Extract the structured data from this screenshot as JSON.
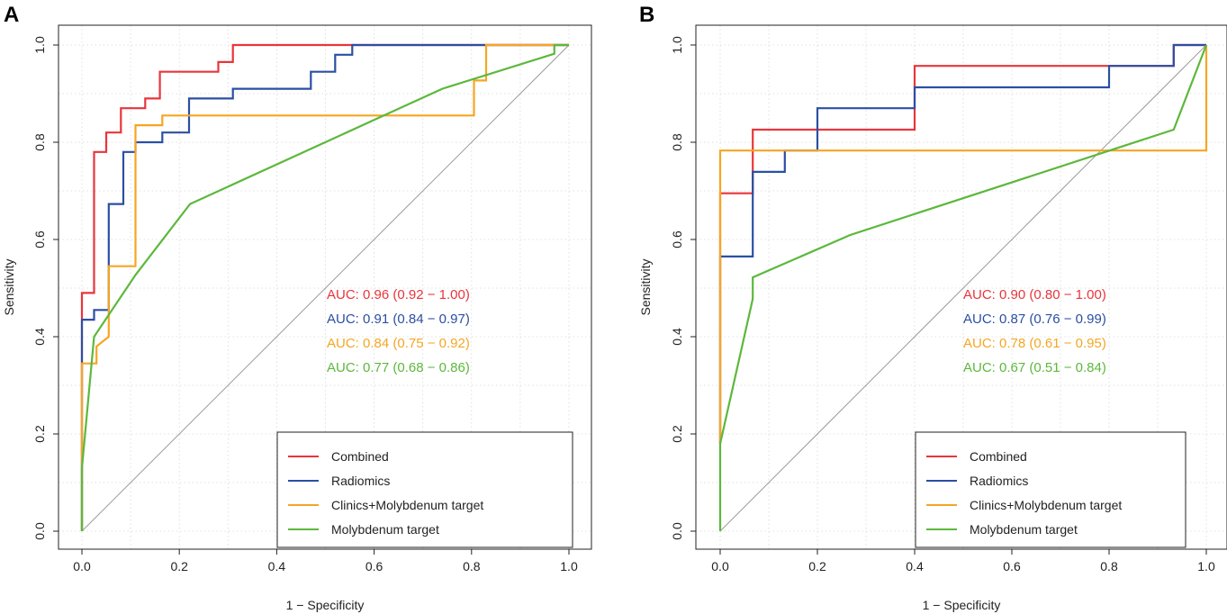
{
  "chart_data": [
    {
      "panel": "A",
      "type": "line",
      "xlabel": "1 − Specificity",
      "ylabel": "Sensitivity",
      "xlim": [
        0,
        1
      ],
      "ylim": [
        0,
        1
      ],
      "xticks": [
        "0.0",
        "0.2",
        "0.4",
        "0.6",
        "0.8",
        "1.0"
      ],
      "yticks": [
        "0.0",
        "0.2",
        "0.4",
        "0.6",
        "0.8",
        "1.0"
      ],
      "grid": true,
      "legend_position": "bottom-right",
      "series": [
        {
          "name": "Combined",
          "color": "#e8353b",
          "auc_label": "AUC: 0.96 (0.92 − 1.00)",
          "points": [
            [
              0,
              0
            ],
            [
              0,
              0.13
            ],
            [
              0,
              0.49
            ],
            [
              0.025,
              0.49
            ],
            [
              0.025,
              0.78
            ],
            [
              0.05,
              0.78
            ],
            [
              0.05,
              0.82
            ],
            [
              0.08,
              0.82
            ],
            [
              0.08,
              0.87
            ],
            [
              0.13,
              0.87
            ],
            [
              0.13,
              0.89
            ],
            [
              0.16,
              0.89
            ],
            [
              0.16,
              0.945
            ],
            [
              0.28,
              0.945
            ],
            [
              0.28,
              0.965
            ],
            [
              0.31,
              0.965
            ],
            [
              0.31,
              1.0
            ],
            [
              1,
              1
            ]
          ]
        },
        {
          "name": "Radiomics",
          "color": "#2b4fa3",
          "auc_label": "AUC: 0.91 (0.84 − 0.97)",
          "points": [
            [
              0,
              0
            ],
            [
              0,
              0.13
            ],
            [
              0,
              0.435
            ],
            [
              0.025,
              0.435
            ],
            [
              0.025,
              0.455
            ],
            [
              0.055,
              0.455
            ],
            [
              0.055,
              0.673
            ],
            [
              0.085,
              0.673
            ],
            [
              0.085,
              0.78
            ],
            [
              0.11,
              0.78
            ],
            [
              0.11,
              0.8
            ],
            [
              0.165,
              0.8
            ],
            [
              0.165,
              0.82
            ],
            [
              0.22,
              0.82
            ],
            [
              0.22,
              0.89
            ],
            [
              0.31,
              0.89
            ],
            [
              0.31,
              0.91
            ],
            [
              0.47,
              0.91
            ],
            [
              0.47,
              0.945
            ],
            [
              0.52,
              0.945
            ],
            [
              0.52,
              0.98
            ],
            [
              0.555,
              0.98
            ],
            [
              0.555,
              1.0
            ],
            [
              1,
              1
            ]
          ]
        },
        {
          "name": "Clinics+Molybdenum target",
          "color": "#f5a623",
          "auc_label": "AUC: 0.84 (0.75 − 0.92)",
          "points": [
            [
              0,
              0
            ],
            [
              0,
              0.13
            ],
            [
              0,
              0.345
            ],
            [
              0.03,
              0.345
            ],
            [
              0.03,
              0.38
            ],
            [
              0.055,
              0.4
            ],
            [
              0.055,
              0.545
            ],
            [
              0.11,
              0.545
            ],
            [
              0.11,
              0.835
            ],
            [
              0.165,
              0.835
            ],
            [
              0.165,
              0.855
            ],
            [
              0.805,
              0.855
            ],
            [
              0.805,
              0.927
            ],
            [
              0.83,
              0.927
            ],
            [
              0.83,
              1.0
            ],
            [
              1,
              1
            ]
          ]
        },
        {
          "name": "Molybdenum target",
          "color": "#5cb83c",
          "auc_label": "AUC: 0.77 (0.68 − 0.86)",
          "points": [
            [
              0,
              0
            ],
            [
              0,
              0.13
            ],
            [
              0.025,
              0.4
            ],
            [
              0.11,
              0.527
            ],
            [
              0.222,
              0.673
            ],
            [
              0.74,
              0.91
            ],
            [
              0.97,
              0.982
            ],
            [
              0.97,
              1.0
            ],
            [
              1,
              1
            ]
          ]
        }
      ]
    },
    {
      "panel": "B",
      "type": "line",
      "xlabel": "1 − Specificity",
      "ylabel": "Sensitivity",
      "xlim": [
        0,
        1
      ],
      "ylim": [
        0,
        1
      ],
      "xticks": [
        "0.0",
        "0.2",
        "0.4",
        "0.6",
        "0.8",
        "1.0"
      ],
      "yticks": [
        "0.0",
        "0.2",
        "0.4",
        "0.6",
        "0.8",
        "1.0"
      ],
      "grid": true,
      "legend_position": "bottom-right",
      "series": [
        {
          "name": "Combined",
          "color": "#e8353b",
          "auc_label": "AUC: 0.90 (0.80 − 1.00)",
          "points": [
            [
              0,
              0.18
            ],
            [
              0,
              0.695
            ],
            [
              0.067,
              0.695
            ],
            [
              0.067,
              0.826
            ],
            [
              0.4,
              0.826
            ],
            [
              0.4,
              0.957
            ],
            [
              0.8,
              0.957
            ],
            [
              0.933,
              0.957
            ],
            [
              0.933,
              1.0
            ],
            [
              1,
              1
            ]
          ]
        },
        {
          "name": "Radiomics",
          "color": "#2b4fa3",
          "auc_label": "AUC: 0.87 (0.76 − 0.99)",
          "points": [
            [
              0,
              0.18
            ],
            [
              0,
              0.565
            ],
            [
              0.067,
              0.565
            ],
            [
              0.067,
              0.739
            ],
            [
              0.133,
              0.739
            ],
            [
              0.133,
              0.783
            ],
            [
              0.2,
              0.783
            ],
            [
              0.2,
              0.87
            ],
            [
              0.4,
              0.87
            ],
            [
              0.4,
              0.913
            ],
            [
              0.8,
              0.913
            ],
            [
              0.8,
              0.957
            ],
            [
              0.933,
              0.957
            ],
            [
              0.933,
              1.0
            ],
            [
              1,
              1
            ]
          ]
        },
        {
          "name": "Clinics+Molybdenum target",
          "color": "#f5a623",
          "auc_label": "AUC: 0.78 (0.61 − 0.95)",
          "points": [
            [
              0,
              0.18
            ],
            [
              0,
              0.783
            ],
            [
              1,
              0.783
            ],
            [
              1,
              1.0
            ]
          ]
        },
        {
          "name": "Molybdenum target",
          "color": "#5cb83c",
          "auc_label": "AUC: 0.67 (0.51 − 0.84)",
          "points": [
            [
              0,
              0
            ],
            [
              0,
              0.18
            ],
            [
              0.067,
              0.478
            ],
            [
              0.067,
              0.522
            ],
            [
              0.267,
              0.609
            ],
            [
              0.933,
              0.826
            ],
            [
              1,
              1.0
            ]
          ]
        }
      ]
    }
  ]
}
